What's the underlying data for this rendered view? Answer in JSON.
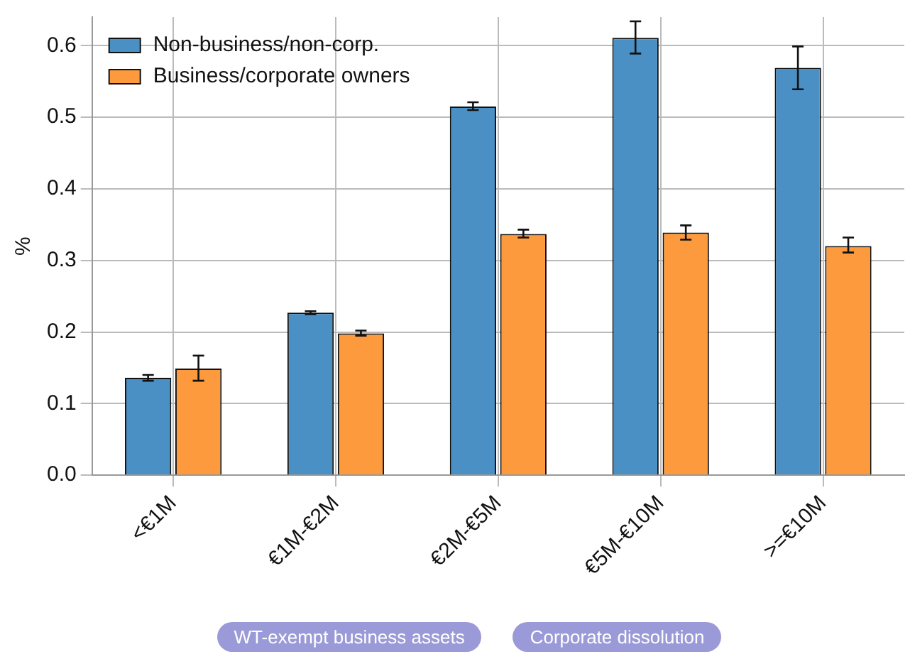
{
  "chart_data": {
    "type": "bar",
    "ylabel": "%",
    "categories": [
      "<€1M",
      "€1M-€2M",
      "€2M-€5M",
      "€5M-€10M",
      ">=€10M"
    ],
    "series": [
      {
        "name": "Non-business/non-corp.",
        "color": "#4a90c4",
        "values": [
          0.136,
          0.227,
          0.515,
          0.611,
          0.569
        ],
        "errors": [
          [
            0.132,
            0.14
          ],
          [
            0.225,
            0.229
          ],
          [
            0.51,
            0.521
          ],
          [
            0.589,
            0.634
          ],
          [
            0.539,
            0.599
          ]
        ]
      },
      {
        "name": "Business/corporate owners",
        "color": "#fd9a3e",
        "values": [
          0.149,
          0.198,
          0.337,
          0.339,
          0.32
        ],
        "errors": [
          [
            0.132,
            0.167
          ],
          [
            0.195,
            0.202
          ],
          [
            0.332,
            0.343
          ],
          [
            0.329,
            0.349
          ],
          [
            0.311,
            0.332
          ]
        ]
      }
    ],
    "ylim": [
      0,
      0.64
    ],
    "yticks": [
      {
        "value": 0,
        "label": "0.0"
      },
      0.1,
      0.2,
      0.3,
      0.4,
      0.5,
      0.6
    ],
    "grid": true,
    "legend": "top left",
    "annotations": [
      "WT-exempt business assets",
      "Corporate dissolution"
    ]
  }
}
